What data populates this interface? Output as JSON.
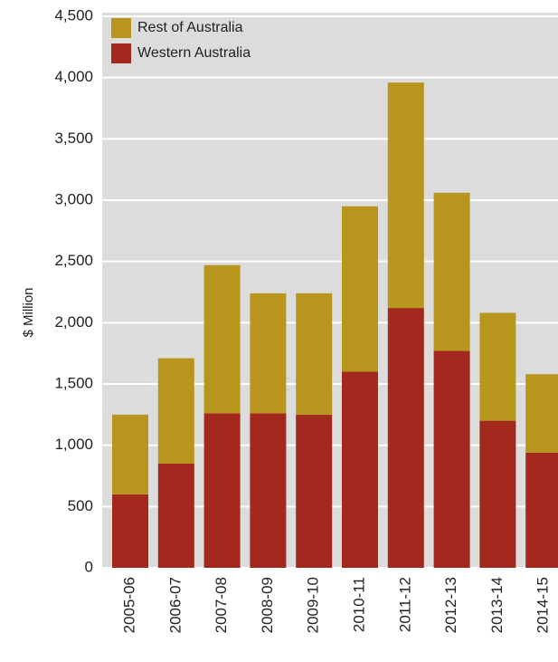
{
  "chart_data": {
    "type": "stacked_bar",
    "y_label": "$ Million",
    "categories": [
      "2005-06",
      "2006-07",
      "2007-08",
      "2008-09",
      "2009-10",
      "2010-11",
      "2011-12",
      "2012-13",
      "2013-14",
      "2014-15"
    ],
    "series": [
      {
        "name": "Rest of Australia",
        "color": "#b8961e",
        "values": [
          650,
          860,
          1210,
          980,
          990,
          1350,
          1840,
          1290,
          880,
          640
        ]
      },
      {
        "name": "Western Australia",
        "color": "#a3291f",
        "values": [
          600,
          850,
          1260,
          1260,
          1250,
          1600,
          2120,
          1770,
          1200,
          940
        ]
      }
    ],
    "ylim": [
      0,
      4500
    ],
    "yticks": [
      0,
      500,
      {
        "value": 1000,
        "label": "1,000"
      },
      {
        "value": 1500,
        "label": "1,500"
      },
      {
        "value": 2000,
        "label": "2,000"
      },
      {
        "value": 2500,
        "label": "2,500"
      },
      {
        "value": 3000,
        "label": "3,000"
      },
      {
        "value": 3500,
        "label": "3,500"
      },
      {
        "value": 4000,
        "label": "4,000"
      },
      {
        "value": 4500,
        "label": "4,500"
      }
    ],
    "grid": true,
    "legend": "top-left"
  }
}
